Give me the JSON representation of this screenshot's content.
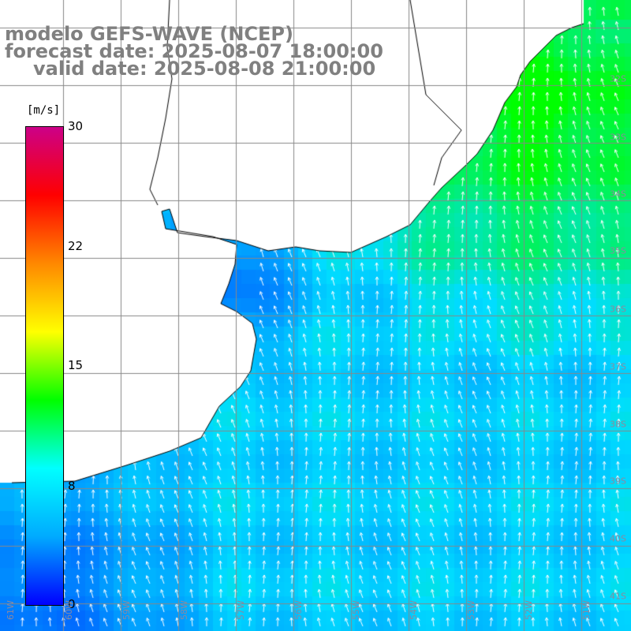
{
  "title": {
    "line1": "modelo GEFS-WAVE (NCEP)",
    "line2": "forecast date: 2025-08-07 18:00:00",
    "line3": "valid date: 2025-08-08 21:00:00"
  },
  "colorbar": {
    "unit": "[m/s]",
    "ticks": [
      "30",
      "22",
      "15",
      "8",
      "0"
    ],
    "min": 0,
    "max": 30,
    "colors": [
      "#0000ff",
      "#00aaff",
      "#00ffff",
      "#00ff00",
      "#ffff00",
      "#ff8800",
      "#ff0000",
      "#cc0088"
    ]
  },
  "map": {
    "ocean_low_color": "#0044ff",
    "ocean_mid_color": "#00ddff",
    "ocean_high_color": "#00ff00",
    "land_color": "#ffffff",
    "grid_color": "#888888",
    "coastline_color": "#000000",
    "arrow_color": "#ffffff",
    "lat_labels": [
      "32S",
      "33S",
      "34S",
      "35S",
      "36S",
      "37S",
      "38S",
      "39S",
      "40S",
      "41S"
    ],
    "lon_labels": [
      "61W",
      "60W",
      "59W",
      "58W",
      "57W",
      "56W",
      "55W",
      "54W",
      "53W",
      "52W",
      "51W"
    ]
  }
}
